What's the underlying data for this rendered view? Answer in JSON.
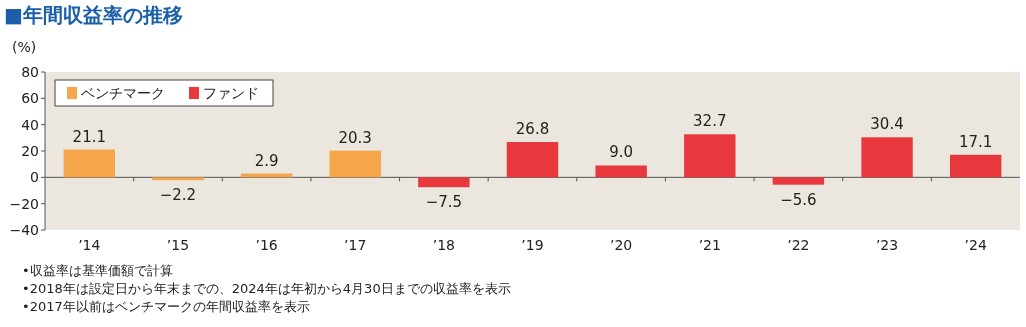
{
  "chart_data": {
    "type": "bar",
    "title": "■年間収益率の推移",
    "ylabel": "(%)",
    "categories": [
      "’14",
      "’15",
      "’16",
      "’17",
      "’18",
      "’19",
      "’20",
      "’21",
      "’22",
      "’23",
      "’24"
    ],
    "series": [
      {
        "name": "ベンチマーク",
        "color": "#f5a54a",
        "values": [
          21.1,
          -2.2,
          2.9,
          20.3,
          null,
          null,
          null,
          null,
          null,
          null,
          null
        ],
        "value_labels": [
          "21.1",
          "−2.2",
          "2.9",
          "20.3",
          null,
          null,
          null,
          null,
          null,
          null,
          null
        ]
      },
      {
        "name": "ファンド",
        "color": "#e8383d",
        "values": [
          null,
          null,
          null,
          null,
          -7.5,
          26.8,
          9.0,
          32.7,
          -5.6,
          30.4,
          17.1
        ],
        "value_labels": [
          null,
          null,
          null,
          null,
          "−7.5",
          "26.8",
          "9.0",
          "32.7",
          "−5.6",
          "30.4",
          "17.1"
        ]
      }
    ],
    "ylim": [
      -40,
      80
    ],
    "yticks": [
      -40,
      -20,
      0,
      20,
      40,
      60,
      80
    ],
    "legend": "top left",
    "annotations": [
      "•収益率は基準価額で計算",
      "•2018年は設定日から年末までの、2024年は年初から4月30日までの収益率を表示",
      "•2017年以前はベンチマークの年間収益率を表示"
    ]
  }
}
